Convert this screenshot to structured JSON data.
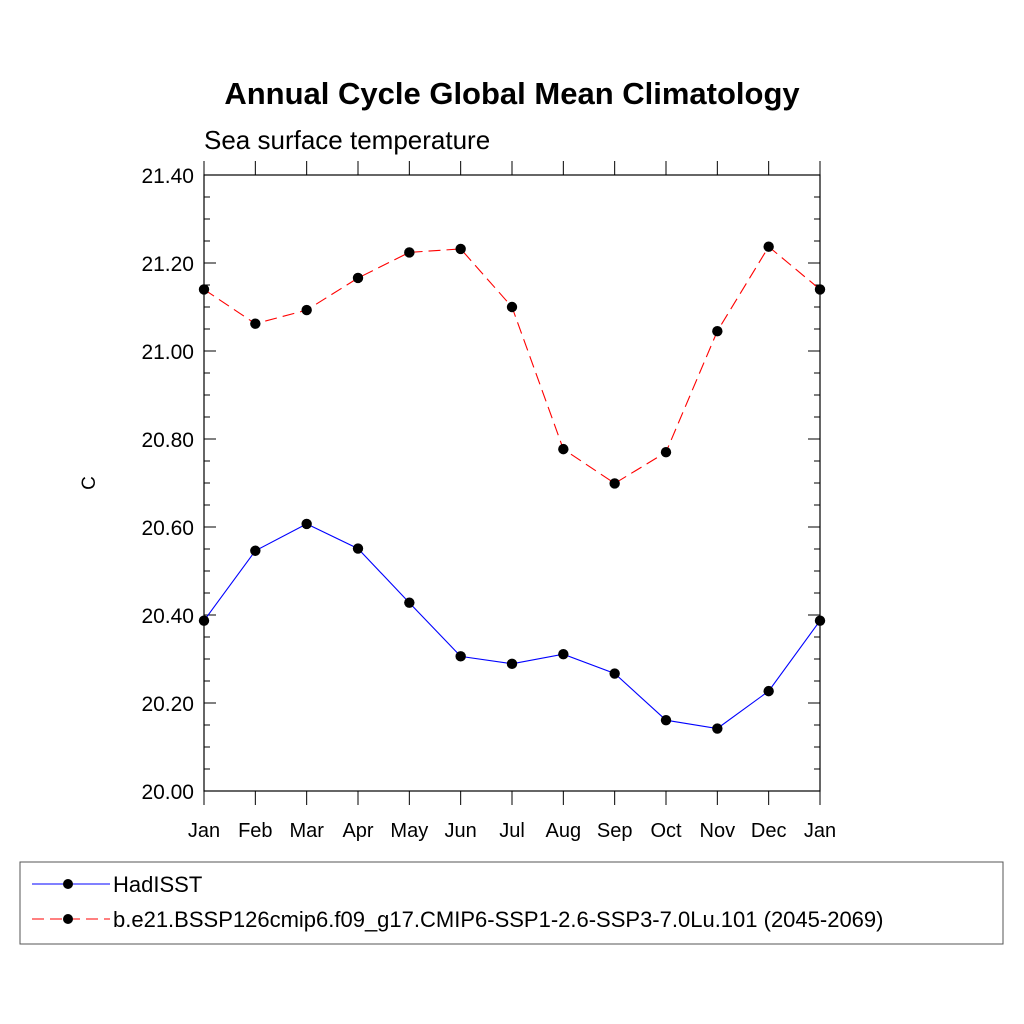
{
  "chart_data": {
    "type": "line",
    "title": "Annual Cycle Global Mean Climatology",
    "subtitle": "Sea surface temperature",
    "ylabel": "C",
    "xlabel": "",
    "categories": [
      "Jan",
      "Feb",
      "Mar",
      "Apr",
      "May",
      "Jun",
      "Jul",
      "Aug",
      "Sep",
      "Oct",
      "Nov",
      "Dec",
      "Jan"
    ],
    "ylim": [
      20.0,
      21.4
    ],
    "yticks": [
      "20.00",
      "20.20",
      "20.40",
      "20.60",
      "20.80",
      "21.00",
      "21.20",
      "21.40"
    ],
    "grid": false,
    "legend_position": "bottom",
    "series": [
      {
        "name": "HadISST",
        "color": "#0000ff",
        "line_style": "solid",
        "marker": "filled-circle",
        "values": [
          20.387,
          20.546,
          20.607,
          20.551,
          20.428,
          20.306,
          20.289,
          20.311,
          20.267,
          20.161,
          20.142,
          20.227,
          20.387
        ]
      },
      {
        "name": "b.e21.BSSP126cmip6.f09_g17.CMIP6-SSP1-2.6-SSP3-7.0Lu.101 (2045-2069)",
        "color": "#ff0000",
        "line_style": "dashed",
        "marker": "filled-circle",
        "values": [
          21.14,
          21.062,
          21.093,
          21.166,
          21.224,
          21.232,
          21.1,
          20.777,
          20.699,
          20.77,
          21.045,
          21.237,
          21.14
        ]
      }
    ]
  }
}
